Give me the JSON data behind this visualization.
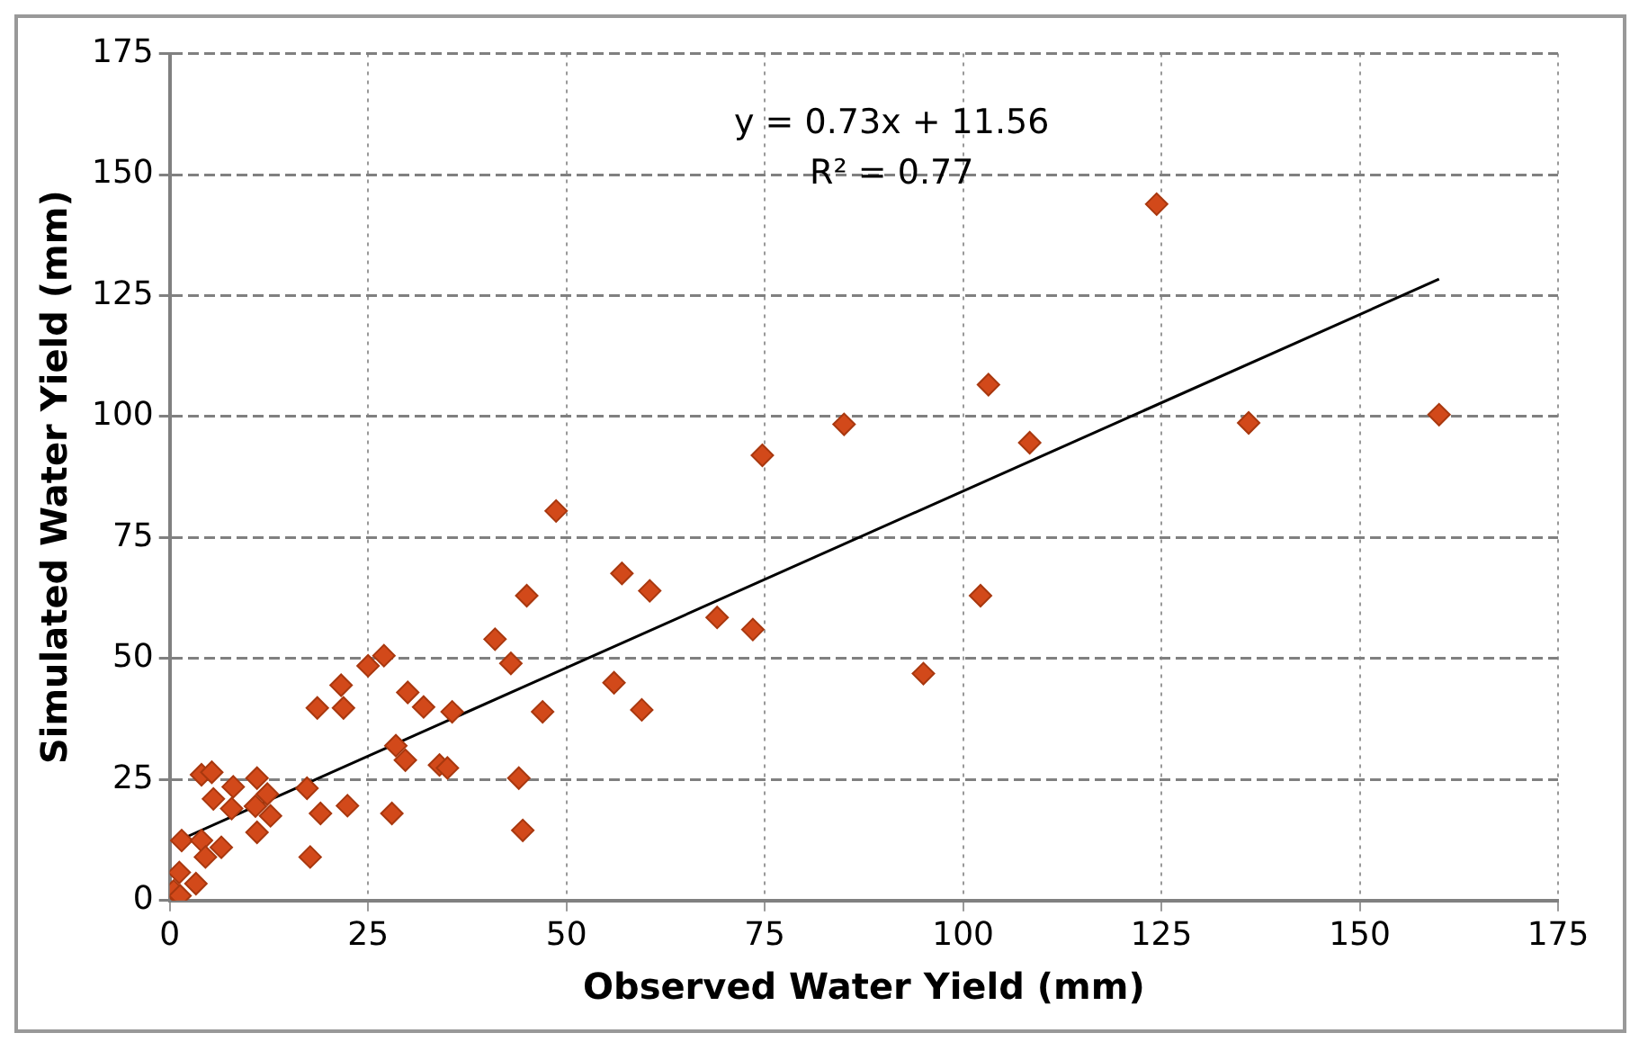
{
  "chart_data": {
    "type": "scatter",
    "xlabel": "Observed Water Yield (mm)",
    "ylabel": "Simulated Water Yield (mm)",
    "xlim": [
      0,
      175
    ],
    "ylim": [
      0,
      175
    ],
    "xticks": [
      0,
      25,
      50,
      75,
      100,
      125,
      150,
      175
    ],
    "yticks": [
      0,
      25,
      50,
      75,
      100,
      125,
      150,
      175
    ],
    "grid": true,
    "marker": "diamond",
    "annotations": [
      "y = 0.73x + 11.56",
      "R² = 0.77"
    ],
    "series": [
      {
        "color": "#d2491a",
        "x": [
          0.5,
          1.2,
          1.3,
          1.5,
          3.3,
          4,
          4.5,
          6.5,
          4,
          5.3,
          5.5,
          7.8,
          8,
          11,
          12.3,
          10.8,
          12.7,
          11,
          17.3,
          19,
          22.4,
          17.7,
          18.6,
          21.6,
          21.9,
          28,
          25,
          27,
          30,
          32,
          35.6,
          28.5,
          29.7,
          34,
          35,
          44,
          44.5,
          41,
          43,
          45,
          48.7,
          47,
          56,
          59.5,
          57,
          60.5,
          69,
          73.5,
          74.7,
          85,
          95,
          102.2,
          103.2,
          108.4,
          124.4,
          136,
          160
        ],
        "values": [
          2,
          5.8,
          1,
          12.4,
          3.5,
          12.4,
          9,
          11,
          26,
          26.5,
          21,
          19,
          23.5,
          25.3,
          22,
          19.5,
          17.5,
          14.1,
          23.2,
          18,
          19.6,
          9,
          39.8,
          44.5,
          39.8,
          18,
          48.5,
          50.6,
          43,
          40,
          39,
          32,
          29,
          28,
          27.4,
          25.3,
          14.5,
          54,
          49,
          63,
          80.5,
          39,
          45,
          39.4,
          67.6,
          64,
          58.5,
          56,
          92,
          98.4,
          46.9,
          63,
          106.6,
          94.6,
          143.9,
          98.7,
          100.4
        ]
      },
      {
        "type": "line",
        "color": "#000000",
        "marker": "none",
        "x": [
          1.5,
          160
        ],
        "values": [
          12.7,
          128.4
        ]
      }
    ]
  }
}
